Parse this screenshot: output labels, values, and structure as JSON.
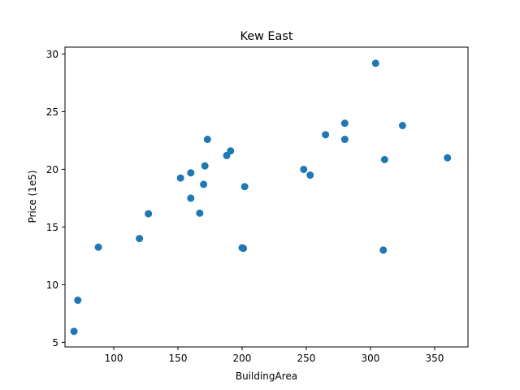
{
  "chart_data": {
    "type": "scatter",
    "title": "Kew East",
    "xlabel": "BuildingArea",
    "ylabel": "Price (1e5)",
    "xlim": [
      62,
      376
    ],
    "ylim": [
      4.6,
      30.6
    ],
    "x_ticks": [
      100,
      150,
      200,
      250,
      300,
      350
    ],
    "y_ticks": [
      5,
      10,
      15,
      20,
      25,
      30
    ],
    "grid": false,
    "marker_color": "#1f77b4",
    "points": [
      {
        "x": 69,
        "y": 5.95
      },
      {
        "x": 72,
        "y": 8.65
      },
      {
        "x": 88,
        "y": 13.25
      },
      {
        "x": 120,
        "y": 14.0
      },
      {
        "x": 127,
        "y": 16.15
      },
      {
        "x": 152,
        "y": 19.25
      },
      {
        "x": 160,
        "y": 19.7
      },
      {
        "x": 160,
        "y": 17.5
      },
      {
        "x": 167,
        "y": 16.2
      },
      {
        "x": 170,
        "y": 18.7
      },
      {
        "x": 171,
        "y": 20.3
      },
      {
        "x": 173,
        "y": 22.6
      },
      {
        "x": 188,
        "y": 21.2
      },
      {
        "x": 191,
        "y": 21.6
      },
      {
        "x": 200,
        "y": 13.2
      },
      {
        "x": 201,
        "y": 13.15
      },
      {
        "x": 202,
        "y": 18.5
      },
      {
        "x": 248,
        "y": 20.0
      },
      {
        "x": 253,
        "y": 19.5
      },
      {
        "x": 265,
        "y": 23.0
      },
      {
        "x": 280,
        "y": 24.0
      },
      {
        "x": 280,
        "y": 22.6
      },
      {
        "x": 304,
        "y": 29.2
      },
      {
        "x": 310,
        "y": 13.0
      },
      {
        "x": 311,
        "y": 20.85
      },
      {
        "x": 325,
        "y": 23.8
      },
      {
        "x": 360,
        "y": 21.0
      }
    ]
  }
}
